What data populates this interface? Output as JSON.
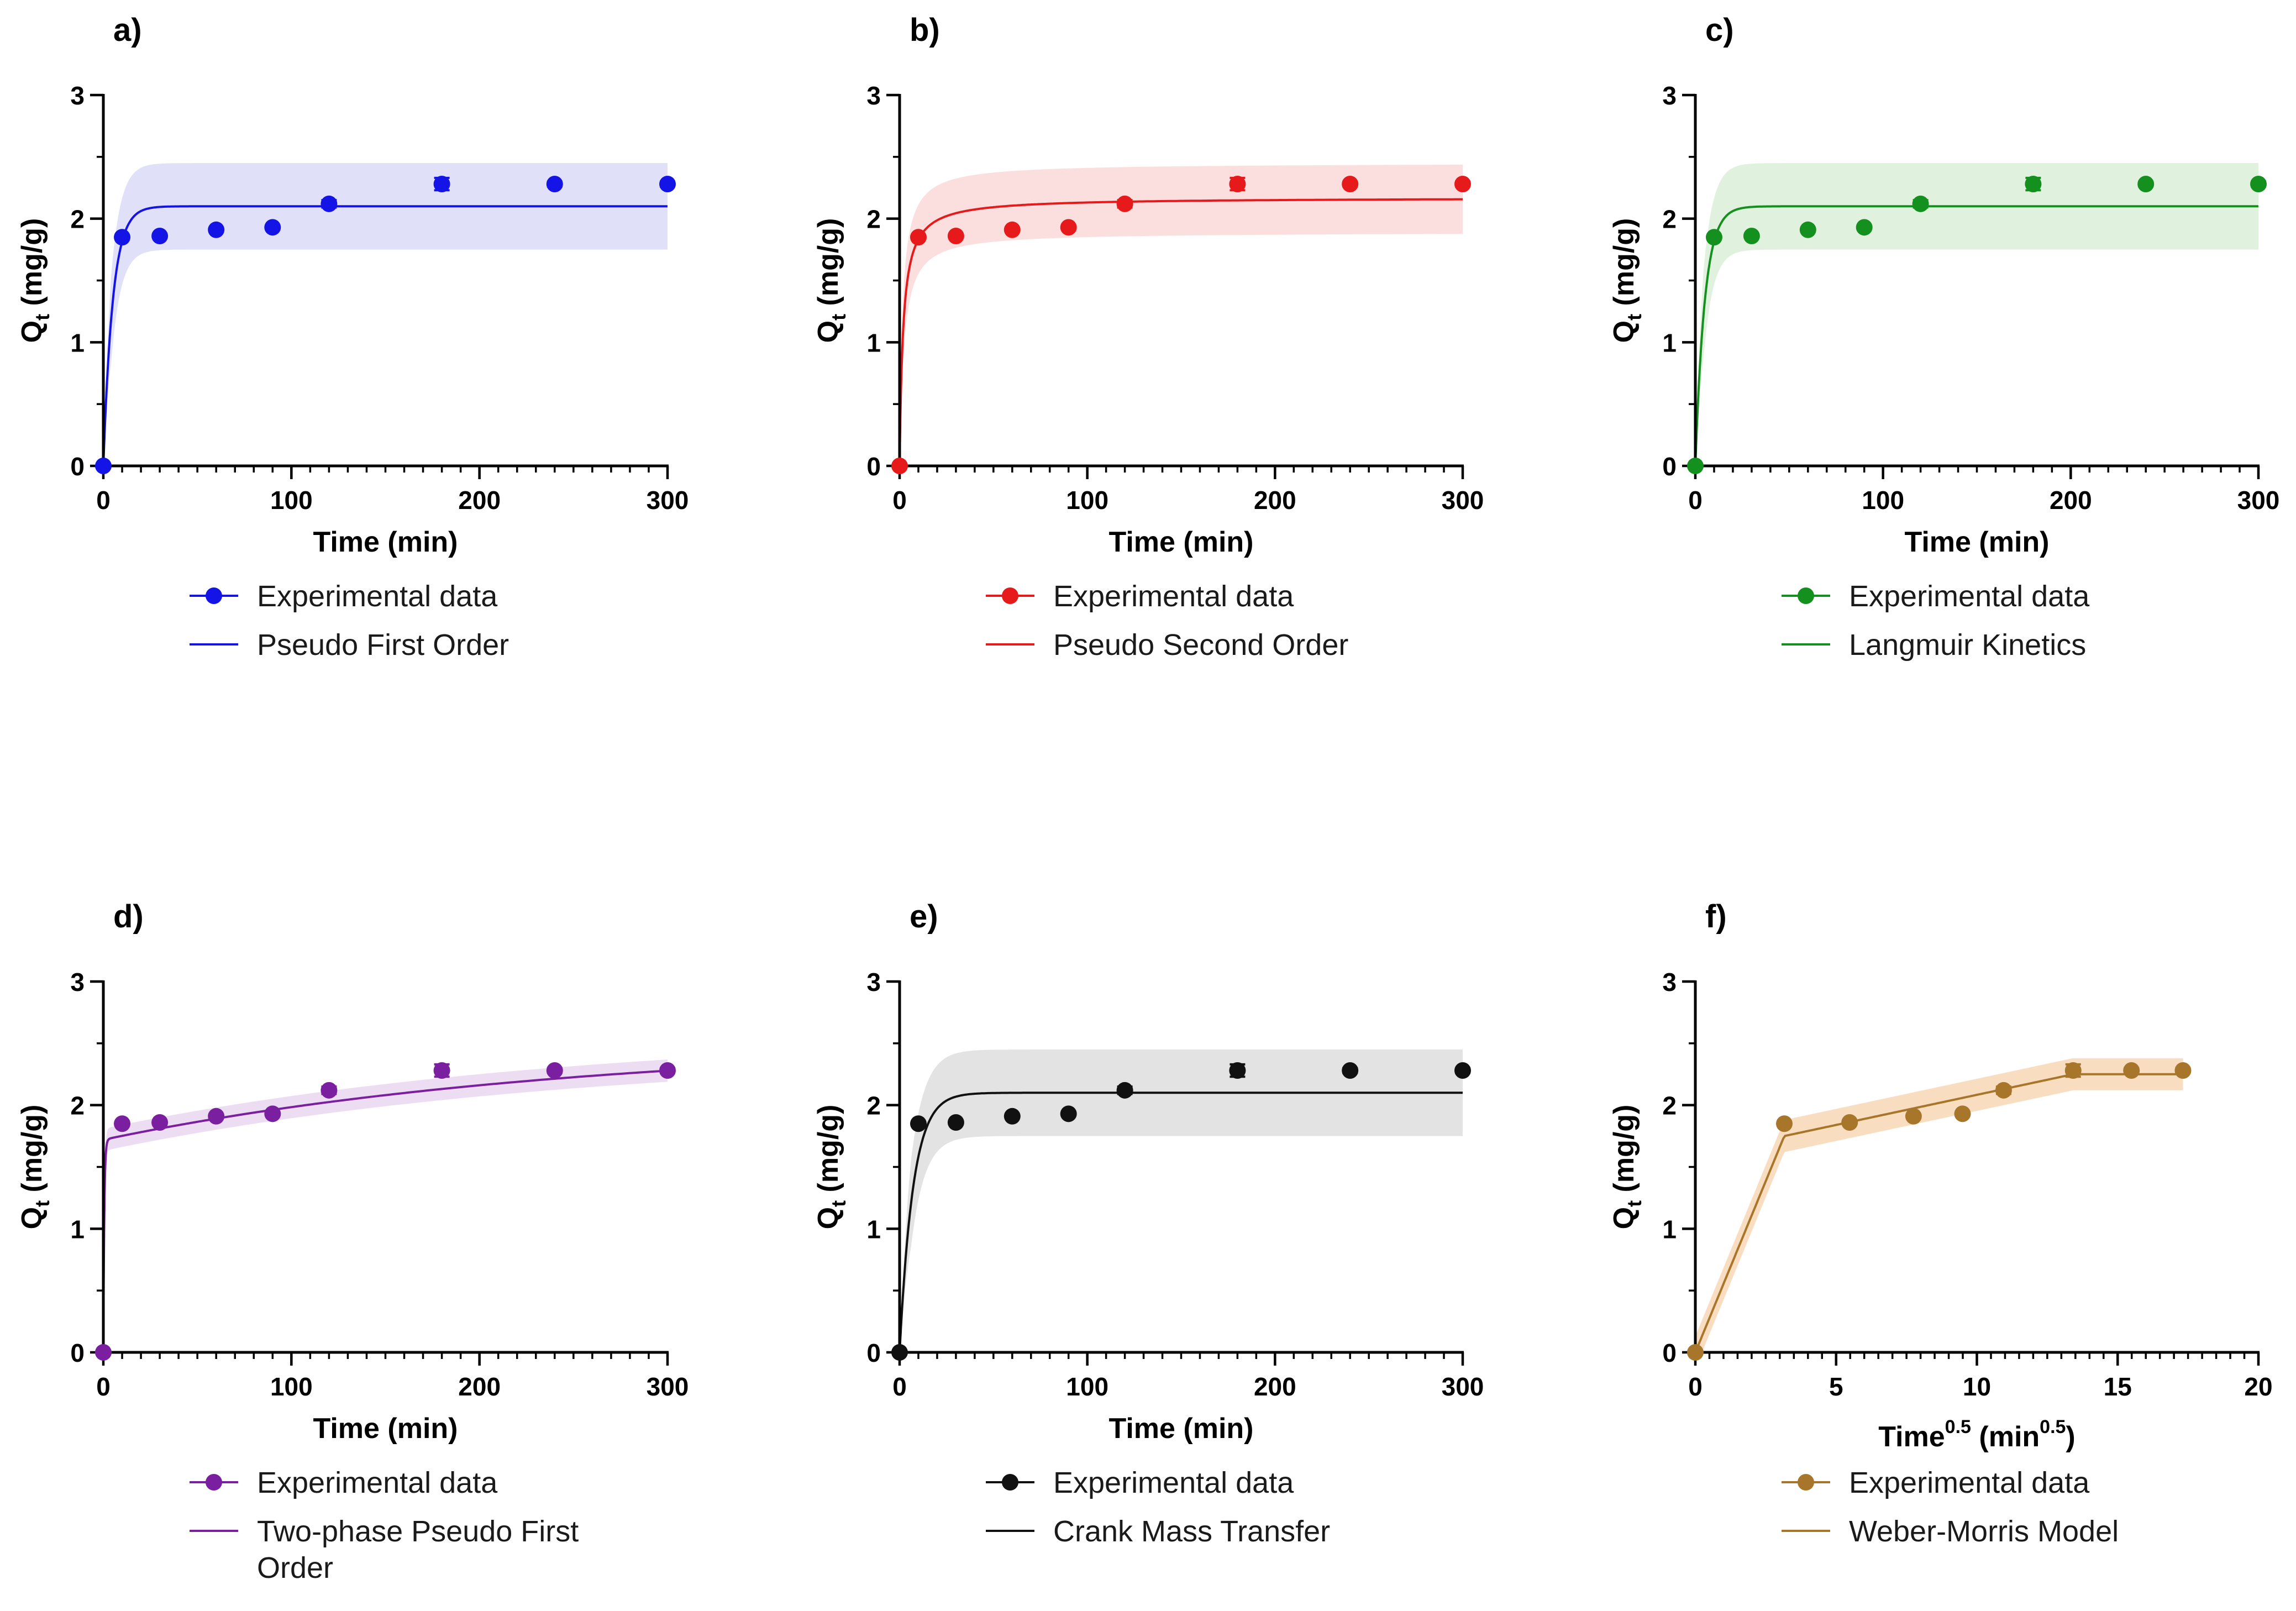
{
  "figure_title": "Adsorption kinetics model fits",
  "chart_data": [
    {
      "panel": "a)",
      "type": "scatter",
      "xlabel": "Time (min)",
      "ylabel": "Q",
      "ylabel_sub": "t",
      "ylabel_unit": " (mg/g)",
      "xlim": [
        0,
        300
      ],
      "ylim": [
        0,
        3
      ],
      "xticks": [
        0,
        100,
        200,
        300
      ],
      "yticks": [
        0,
        1,
        2,
        3
      ],
      "x_minor_step": 10,
      "y_minor_step": 0.5,
      "color": "#1414e6",
      "band_color": "#d6d6f7",
      "x": [
        0,
        10,
        30,
        60,
        90,
        120,
        180,
        240,
        300
      ],
      "y": [
        0,
        1.85,
        1.86,
        1.91,
        1.93,
        2.12,
        2.28,
        2.28,
        2.28
      ],
      "yerr": [
        0,
        0,
        0,
        0,
        0,
        0.03,
        0.05,
        0.02,
        0.02
      ],
      "model": {
        "kind": "pfo",
        "qe": 2.1,
        "k": 0.2,
        "band": 0.35
      },
      "legend": [
        "Experimental data",
        "Pseudo First Order"
      ]
    },
    {
      "panel": "b)",
      "type": "scatter",
      "xlabel": "Time (min)",
      "ylabel": "Q",
      "ylabel_sub": "t",
      "ylabel_unit": " (mg/g)",
      "xlim": [
        0,
        300
      ],
      "ylim": [
        0,
        3
      ],
      "xticks": [
        0,
        100,
        200,
        300
      ],
      "yticks": [
        0,
        1,
        2,
        3
      ],
      "x_minor_step": 10,
      "y_minor_step": 0.5,
      "color": "#e61a1a",
      "band_color": "#f9d3d3",
      "x": [
        0,
        10,
        30,
        60,
        90,
        120,
        180,
        240,
        300
      ],
      "y": [
        0,
        1.85,
        1.86,
        1.91,
        1.93,
        2.12,
        2.28,
        2.28,
        2.28
      ],
      "yerr": [
        0,
        0,
        0,
        0,
        0,
        0.03,
        0.05,
        0.02,
        0.02
      ],
      "model": {
        "kind": "pso",
        "qe": 2.17,
        "k": 0.25,
        "band": 0.28
      },
      "legend": [
        "Experimental data",
        "Pseudo Second Order"
      ]
    },
    {
      "panel": "c)",
      "type": "scatter",
      "xlabel": "Time (min)",
      "ylabel": "Q",
      "ylabel_sub": "t",
      "ylabel_unit": " (mg/g)",
      "xlim": [
        0,
        300
      ],
      "ylim": [
        0,
        3
      ],
      "xticks": [
        0,
        100,
        200,
        300
      ],
      "yticks": [
        0,
        1,
        2,
        3
      ],
      "x_minor_step": 10,
      "y_minor_step": 0.5,
      "color": "#14901e",
      "band_color": "#d5ecd3",
      "x": [
        0,
        10,
        30,
        60,
        90,
        120,
        180,
        240,
        300
      ],
      "y": [
        0,
        1.85,
        1.86,
        1.91,
        1.93,
        2.12,
        2.28,
        2.28,
        2.28
      ],
      "yerr": [
        0,
        0,
        0,
        0,
        0,
        0.03,
        0.05,
        0.02,
        0.02
      ],
      "model": {
        "kind": "pfo",
        "qe": 2.1,
        "k": 0.2,
        "band": 0.35
      },
      "legend": [
        "Experimental data",
        "Langmuir Kinetics"
      ]
    },
    {
      "panel": "d)",
      "type": "scatter",
      "xlabel": "Time (min)",
      "ylabel": "Q",
      "ylabel_sub": "t",
      "ylabel_unit": " (mg/g)",
      "xlim": [
        0,
        300
      ],
      "ylim": [
        0,
        3
      ],
      "xticks": [
        0,
        100,
        200,
        300
      ],
      "yticks": [
        0,
        1,
        2,
        3
      ],
      "x_minor_step": 10,
      "y_minor_step": 0.5,
      "color": "#7a1fa0",
      "band_color": "#e6d2ef",
      "x": [
        0,
        10,
        30,
        60,
        90,
        120,
        180,
        240,
        300
      ],
      "y": [
        0,
        1.85,
        1.86,
        1.91,
        1.93,
        2.12,
        2.28,
        2.28,
        2.28
      ],
      "yerr": [
        0,
        0,
        0,
        0,
        0,
        0.03,
        0.05,
        0.02,
        0.02
      ],
      "model": {
        "kind": "twophase",
        "q1": 1.72,
        "k1": 2.0,
        "q2": 0.8,
        "k2": 0.004,
        "band": 0.09
      },
      "legend": [
        "Experimental data",
        "Two-phase Pseudo First",
        "Order"
      ]
    },
    {
      "panel": "e)",
      "type": "scatter",
      "xlabel": "Time (min)",
      "ylabel": "Q",
      "ylabel_sub": "t",
      "ylabel_unit": " (mg/g)",
      "xlim": [
        0,
        300
      ],
      "ylim": [
        0,
        3
      ],
      "xticks": [
        0,
        100,
        200,
        300
      ],
      "yticks": [
        0,
        1,
        2,
        3
      ],
      "x_minor_step": 10,
      "y_minor_step": 0.5,
      "color": "#111111",
      "band_color": "#d9d9d9",
      "x": [
        0,
        10,
        30,
        60,
        90,
        120,
        180,
        240,
        300
      ],
      "y": [
        0,
        1.85,
        1.86,
        1.91,
        1.93,
        2.12,
        2.28,
        2.28,
        2.28
      ],
      "yerr": [
        0,
        0,
        0,
        0,
        0,
        0.03,
        0.05,
        0.02,
        0.02
      ],
      "model": {
        "kind": "pfo",
        "qe": 2.1,
        "k": 0.14,
        "band": 0.35
      },
      "legend": [
        "Experimental data",
        "Crank Mass Transfer"
      ]
    },
    {
      "panel": "f)",
      "type": "scatter",
      "xlabel": "Time",
      "xlabel_sup": "0.5",
      "xlabel_unit_pre": " (min",
      "xlabel_unit_sup": "0.5",
      "xlabel_unit_post": ")",
      "ylabel": "Q",
      "ylabel_sub": "t",
      "ylabel_unit": " (mg/g)",
      "xlim": [
        0,
        20
      ],
      "ylim": [
        0,
        3
      ],
      "xticks": [
        0,
        5,
        10,
        15,
        20
      ],
      "yticks": [
        0,
        1,
        2,
        3
      ],
      "x_minor_step": 0.5,
      "y_minor_step": 0.5,
      "color": "#a8762a",
      "band_color": "#f7d2ab",
      "x": [
        0,
        3.16,
        5.48,
        7.75,
        9.49,
        10.95,
        13.42,
        15.49,
        17.32
      ],
      "y": [
        0,
        1.85,
        1.86,
        1.91,
        1.93,
        2.12,
        2.28,
        2.28,
        2.28
      ],
      "yerr": [
        0,
        0,
        0,
        0,
        0,
        0.03,
        0.05,
        0.02,
        0.02
      ],
      "model": {
        "kind": "piecewise",
        "pts": [
          [
            0,
            0
          ],
          [
            3.16,
            1.75
          ],
          [
            13.42,
            2.25
          ],
          [
            17.32,
            2.25
          ]
        ],
        "band": 0.13
      },
      "legend": [
        "Experimental data",
        "Weber-Morris Model"
      ]
    }
  ]
}
